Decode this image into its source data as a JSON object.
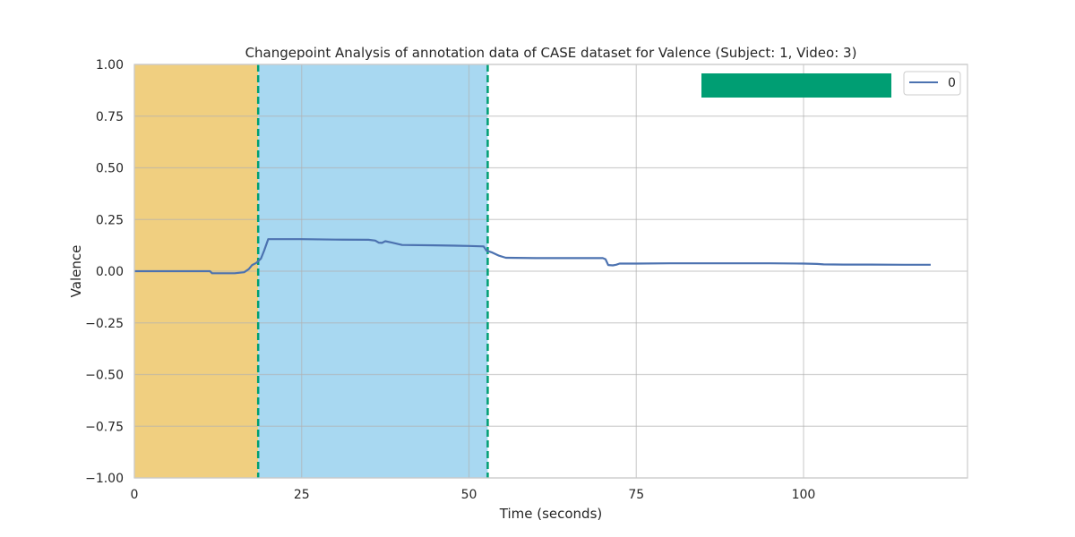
{
  "chart_data": {
    "type": "line",
    "title": "Changepoint Analysis of annotation data of CASE dataset for Valence (Subject: 1, Video: 3)",
    "xlabel": "Time (seconds)",
    "ylabel": "Valence",
    "xlim": [
      0,
      124.5
    ],
    "ylim": [
      -1.0,
      1.0
    ],
    "x_ticks": [
      0,
      25,
      50,
      75,
      100
    ],
    "y_ticks": [
      1.0,
      0.75,
      0.5,
      0.25,
      0.0,
      -0.25,
      -0.5,
      -0.75,
      -1.0
    ],
    "grid": true,
    "legend": {
      "location": "upper right",
      "entries": [
        "0"
      ]
    },
    "regions": [
      {
        "x_start": 0,
        "x_end": 18.5,
        "color": "#f0cf80"
      },
      {
        "x_start": 18.5,
        "x_end": 52.8,
        "color": "#a8d8f1"
      }
    ],
    "changepoints": [
      18.5,
      52.8
    ],
    "changepoint_color": "#009e73",
    "annotation_bar_color": "#009e73",
    "series": [
      {
        "name": "0",
        "color": "#4c72b0",
        "x": [
          0,
          11.3,
          11.6,
          15,
          16.4,
          17.1,
          17.6,
          18.2,
          18.9,
          19.4,
          20,
          25,
          30,
          35,
          36,
          36.5,
          37,
          37.5,
          38.5,
          40,
          45,
          50,
          52.2,
          52.6,
          53.5,
          54.5,
          55.5,
          60,
          65,
          70,
          70.4,
          70.8,
          71.5,
          72,
          72.5,
          75,
          80,
          90,
          95,
          100,
          102,
          103,
          106,
          110,
          115,
          119
        ],
        "y": [
          0.0,
          0.0,
          -0.01,
          -0.01,
          -0.005,
          0.01,
          0.03,
          0.04,
          0.06,
          0.1,
          0.155,
          0.155,
          0.153,
          0.152,
          0.148,
          0.138,
          0.137,
          0.145,
          0.138,
          0.127,
          0.125,
          0.122,
          0.12,
          0.1,
          0.09,
          0.075,
          0.065,
          0.063,
          0.063,
          0.063,
          0.058,
          0.03,
          0.028,
          0.031,
          0.037,
          0.037,
          0.038,
          0.038,
          0.038,
          0.037,
          0.035,
          0.033,
          0.032,
          0.032,
          0.031,
          0.031
        ]
      }
    ]
  }
}
